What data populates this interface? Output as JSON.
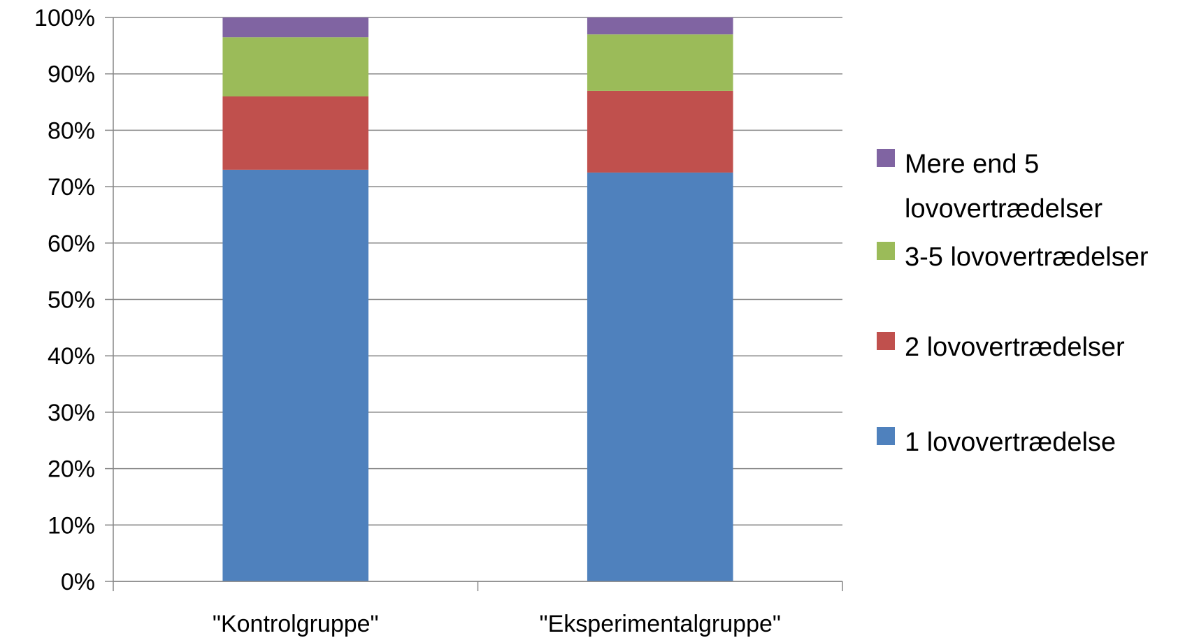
{
  "chart_data": {
    "type": "bar",
    "stacked": true,
    "percent_stacked": true,
    "categories": [
      "\"Kontrolgruppe\"",
      "\"Eksperimentalgruppe\""
    ],
    "series": [
      {
        "name": "1 lovovertrædelse",
        "values": [
          73,
          72.5
        ],
        "color": "#4F81BD"
      },
      {
        "name": "2 lovovertrædelser",
        "values": [
          13,
          14.5
        ],
        "color": "#C0504D"
      },
      {
        "name": "3-5 lovovertrædelser",
        "values": [
          10.5,
          10
        ],
        "color": "#9BBB59"
      },
      {
        "name": "Mere end 5 lovovertrædelser",
        "values": [
          3.5,
          3
        ],
        "color": "#8064A2"
      }
    ],
    "legend_order": [
      3,
      2,
      1,
      0
    ],
    "legend_labels": [
      [
        "Mere end 5",
        "lovovertrædelser"
      ],
      [
        "3-5 lovovertrædelser"
      ],
      [
        "2 lovovertrædelser"
      ],
      [
        "1 lovovertrædelse"
      ]
    ],
    "ylim": [
      0,
      100
    ],
    "yticks": [
      0,
      10,
      20,
      30,
      40,
      50,
      60,
      70,
      80,
      90,
      100
    ],
    "ytick_labels": [
      "0%",
      "10%",
      "20%",
      "30%",
      "40%",
      "50%",
      "60%",
      "70%",
      "80%",
      "90%",
      "100%"
    ],
    "grid": true,
    "legend_position": "right",
    "title": "",
    "xlabel": "",
    "ylabel": ""
  }
}
